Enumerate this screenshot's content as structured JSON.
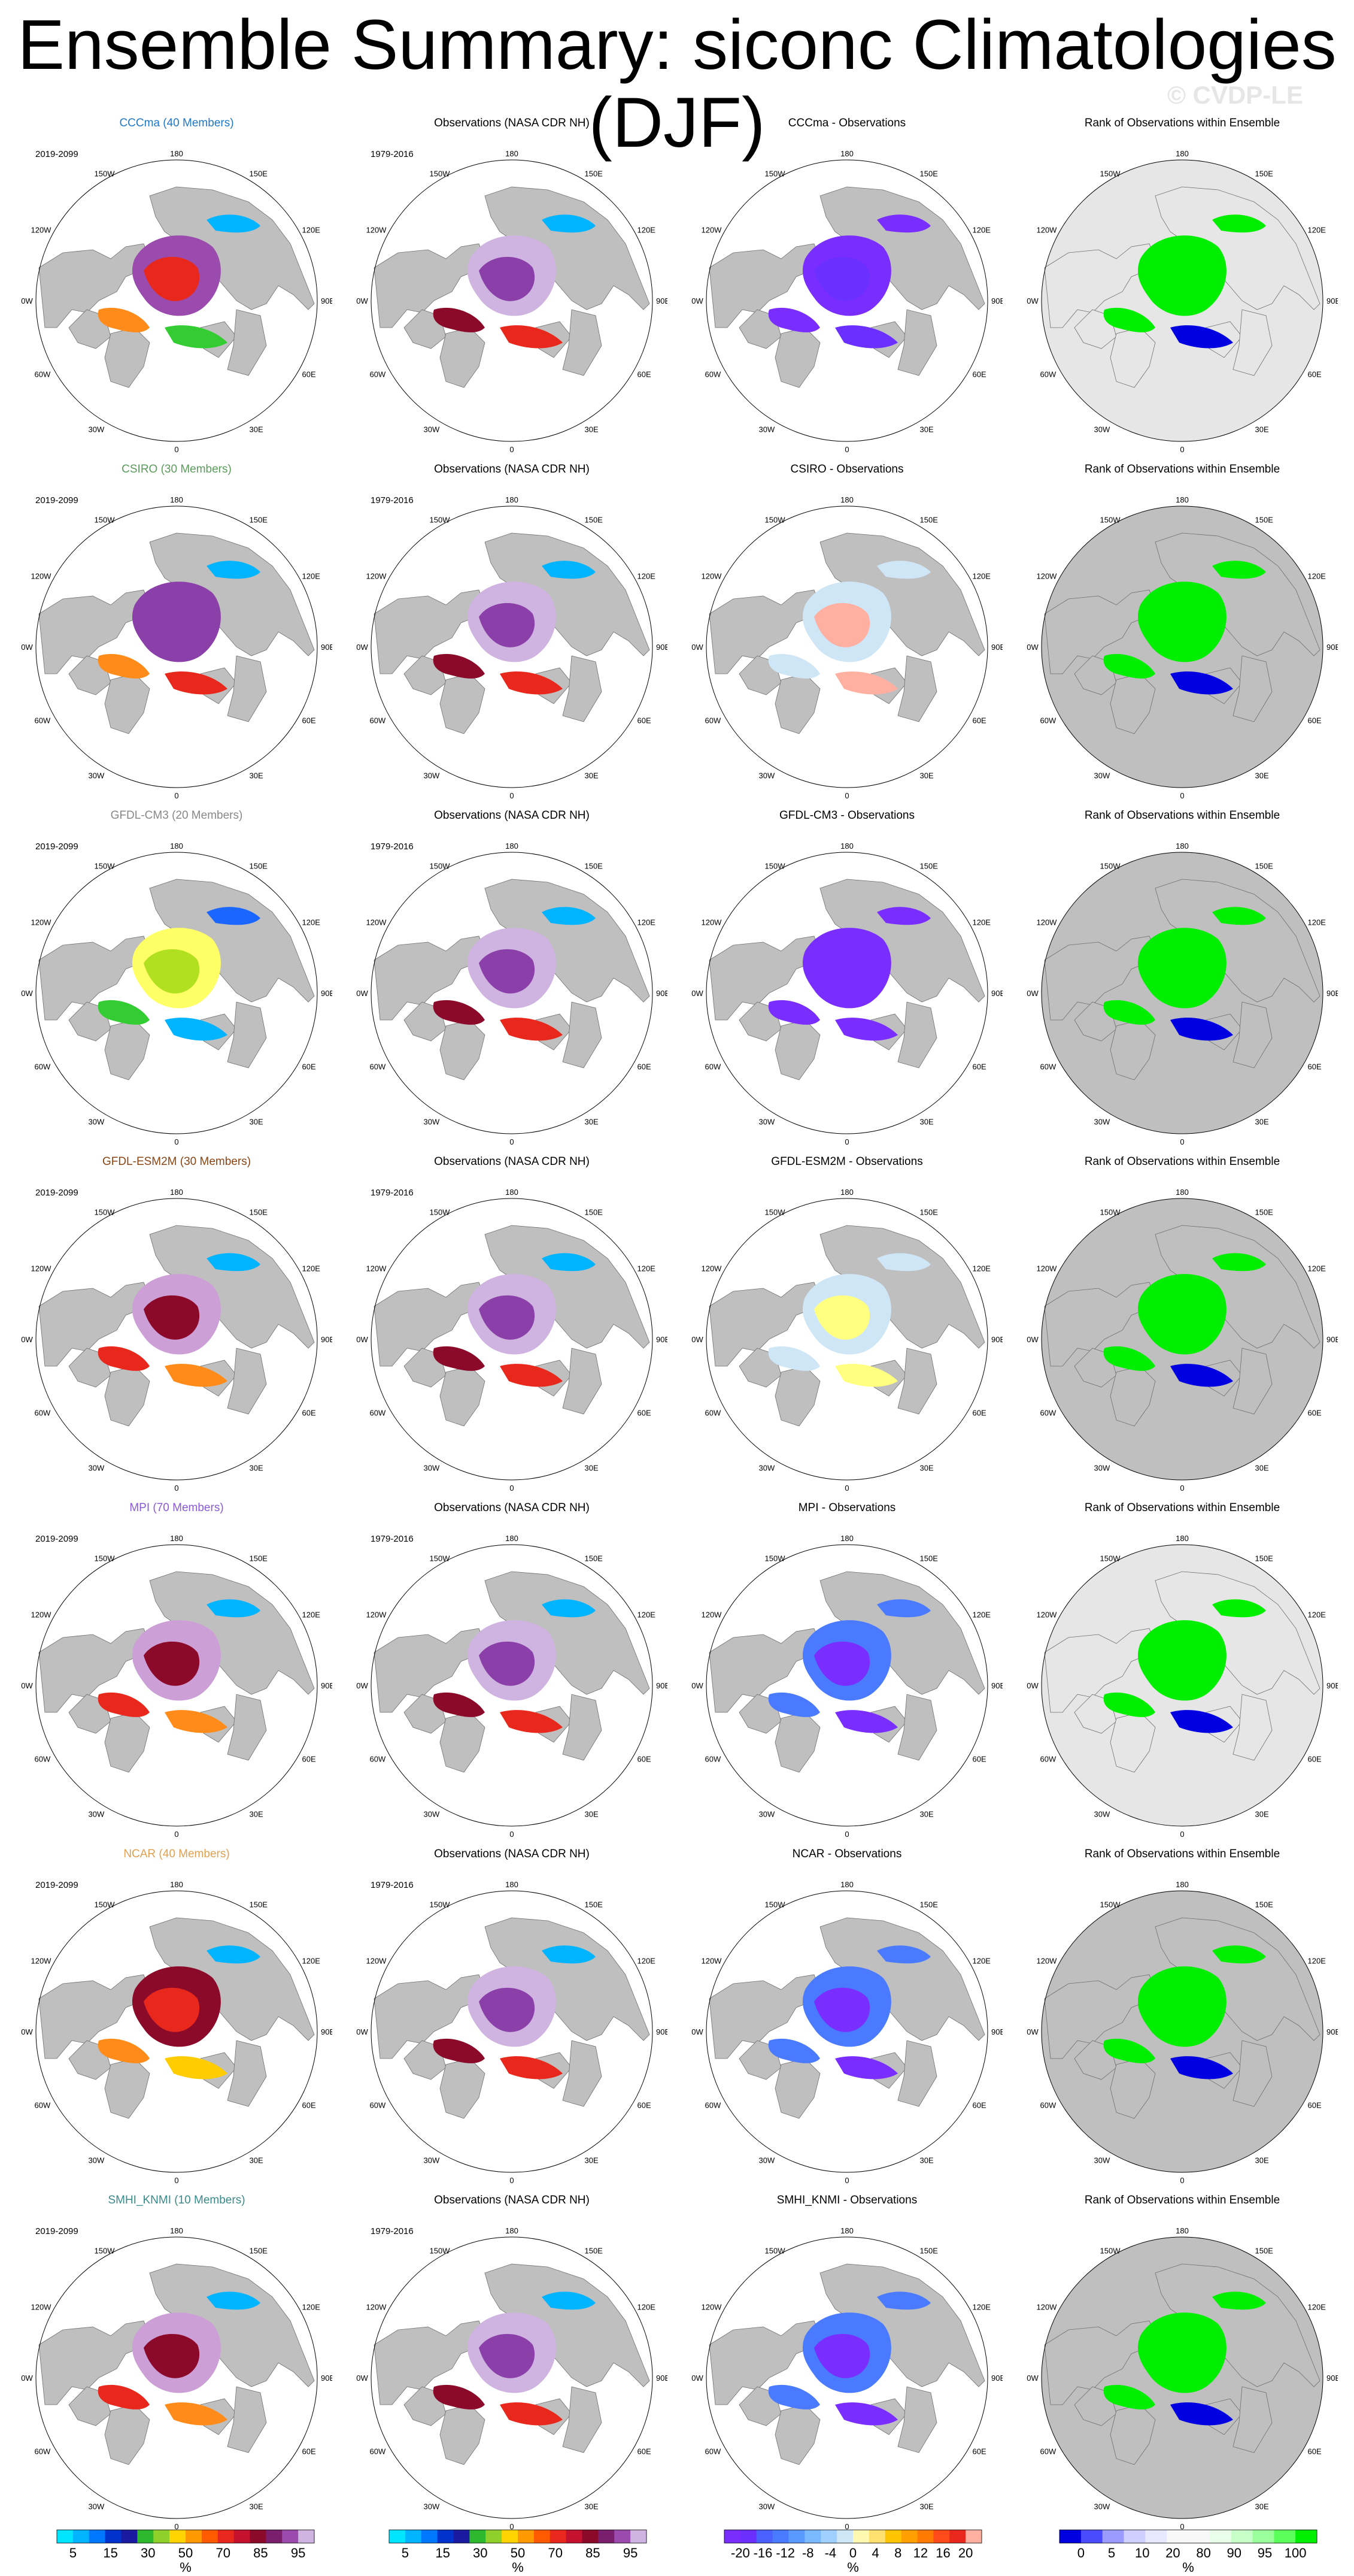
{
  "title": "Ensemble Summary: siconc Climatologies (DJF)",
  "watermark": "© CVDP-LE",
  "rows": [
    {
      "model": "CCCma (40 Members)",
      "color": "#1f78c8",
      "years": "2019-2099",
      "obs_years": "1979-2016",
      "diff_title": "CCCma - Observations",
      "rank_title": "Rank of Observations within Ensemble",
      "fill": [
        "#9b4bad",
        "#e8281c",
        "#ff8c1a",
        "#33cc33",
        "#00b4ff"
      ],
      "diff_fill": [
        "#7a2dff",
        "#6b30ff"
      ],
      "rank_bg": "#e6e6e6"
    },
    {
      "model": "CSIRO (30 Members)",
      "color": "#5a9c5a",
      "years": "2019-2099",
      "obs_years": "1979-2016",
      "diff_title": "CSIRO - Observations",
      "rank_title": "Rank of Observations within Ensemble",
      "fill": [
        "#8b3fa8",
        "#8b3fa8",
        "#ff8c1a",
        "#e8281c",
        "#00b4ff"
      ],
      "diff_fill": [
        "#cfe6f7",
        "#ffb0a0"
      ],
      "rank_bg": "#bfbfbf"
    },
    {
      "model": "GFDL-CM3 (20 Members)",
      "color": "#888888",
      "years": "2019-2099",
      "obs_years": "1979-2016",
      "diff_title": "GFDL-CM3 - Observations",
      "rank_title": "Rank of Observations within Ensemble",
      "fill": [
        "#ffff66",
        "#b0e020",
        "#33cc33",
        "#00b4ff",
        "#1a66ff"
      ],
      "diff_fill": [
        "#7a2dff",
        "#7a2dff"
      ],
      "rank_bg": "#bfbfbf"
    },
    {
      "model": "GFDL-ESM2M (30 Members)",
      "color": "#8b4513",
      "years": "2019-2099",
      "obs_years": "1979-2016",
      "diff_title": "GFDL-ESM2M - Observations",
      "rank_title": "Rank of Observations within Ensemble",
      "fill": [
        "#cc9fd6",
        "#8b0a2a",
        "#e8281c",
        "#ff8c1a",
        "#00b4ff"
      ],
      "diff_fill": [
        "#cfe6f7",
        "#ffff80"
      ],
      "rank_bg": "#bfbfbf"
    },
    {
      "model": "MPI (70 Members)",
      "color": "#8a5ad6",
      "years": "2019-2099",
      "obs_years": "1979-2016",
      "diff_title": "MPI - Observations",
      "rank_title": "Rank of Observations within Ensemble",
      "fill": [
        "#cc9fd6",
        "#8b0a2a",
        "#e8281c",
        "#ff8c1a",
        "#00b4ff"
      ],
      "diff_fill": [
        "#4a7aff",
        "#7a2dff"
      ],
      "rank_bg": "#e6e6e6"
    },
    {
      "model": "NCAR (40 Members)",
      "color": "#e0a050",
      "years": "2019-2099",
      "obs_years": "1979-2016",
      "diff_title": "NCAR - Observations",
      "rank_title": "Rank of Observations within Ensemble",
      "fill": [
        "#8b0a2a",
        "#e8281c",
        "#ff8c1a",
        "#ffcc00",
        "#00b4ff"
      ],
      "diff_fill": [
        "#4a7aff",
        "#7a2dff"
      ],
      "rank_bg": "#bfbfbf"
    },
    {
      "model": "SMHI_KNMI (10 Members)",
      "color": "#3a8a8a",
      "years": "2019-2099",
      "obs_years": "1979-2016",
      "diff_title": "SMHI_KNMI - Observations",
      "rank_title": "Rank of Observations within Ensemble",
      "fill": [
        "#cc9fd6",
        "#8b0a2a",
        "#e8281c",
        "#ff8c1a",
        "#00b4ff"
      ],
      "diff_fill": [
        "#4a7aff",
        "#7a2dff"
      ],
      "rank_bg": "#bfbfbf"
    }
  ],
  "obs_title": "Observations (NASA CDR NH)",
  "obs_fill": [
    "#cfb3e0",
    "#8b3fa8",
    "#8b0a2a",
    "#e8281c",
    "#00b4ff"
  ],
  "map_labels": {
    "top": "180",
    "bottom": "0",
    "left": "90W",
    "right": "90E",
    "ul": "150W",
    "ur": "150E",
    "ul2": "120W",
    "ur2": "120E",
    "ll": "60W",
    "lr": "60E",
    "ll2": "30W",
    "lr2": "30E"
  },
  "colorbars": [
    {
      "unit": "%",
      "colors": [
        "#00e5ff",
        "#00b4ff",
        "#0077ff",
        "#0033cc",
        "#1a1aa0",
        "#2db82d",
        "#8fd12a",
        "#ffd400",
        "#ff9900",
        "#ff5a00",
        "#e8281c",
        "#c4112e",
        "#8b0a2a",
        "#7a1f6e",
        "#9b4bad",
        "#cfb3e0"
      ],
      "ticks": [
        "5",
        "15",
        "30",
        "50",
        "70",
        "85",
        "95"
      ]
    },
    {
      "unit": "%",
      "colors": [
        "#00e5ff",
        "#00b4ff",
        "#0077ff",
        "#0033cc",
        "#1a1aa0",
        "#2db82d",
        "#8fd12a",
        "#ffd400",
        "#ff9900",
        "#ff5a00",
        "#e8281c",
        "#c4112e",
        "#8b0a2a",
        "#7a1f6e",
        "#9b4bad",
        "#cfb3e0"
      ],
      "ticks": [
        "5",
        "15",
        "30",
        "50",
        "70",
        "85",
        "95"
      ]
    },
    {
      "unit": "%",
      "colors": [
        "#7a2dff",
        "#6b30ff",
        "#4a60ff",
        "#4a7aff",
        "#5a9aff",
        "#7ab8ff",
        "#9fd0ff",
        "#cfe6f7",
        "#fff8b0",
        "#ffe070",
        "#ffc400",
        "#ffa000",
        "#ff7a00",
        "#ff4a1a",
        "#e8281c",
        "#ffb0a0"
      ],
      "ticks": [
        "-20",
        "-16",
        "-12",
        "-8",
        "-4",
        "0",
        "4",
        "8",
        "12",
        "16",
        "20"
      ]
    },
    {
      "unit": "%",
      "colors": [
        "#0000e0",
        "#4a4aff",
        "#9a9aff",
        "#cfcfff",
        "#e8e8ff",
        "#f8f8f8",
        "#f8f8f8",
        "#eaffea",
        "#c8ffc8",
        "#9aff9a",
        "#5aff5a",
        "#00ee00"
      ],
      "ticks": [
        "0",
        "5",
        "10",
        "20",
        "80",
        "90",
        "95",
        "100"
      ]
    }
  ]
}
